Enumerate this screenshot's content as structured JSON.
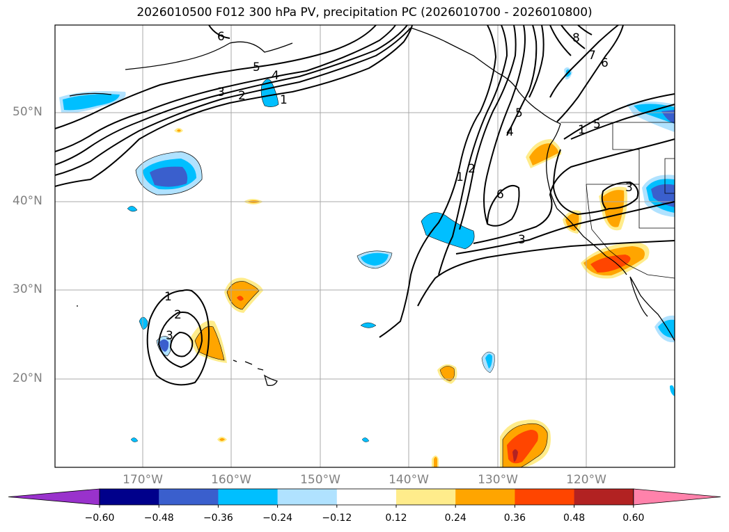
{
  "title": "2026010500 F012 300 hPa PV, precipitation PC (2026010700 - 2026010800)",
  "lat_labels": [
    "50°N",
    "40°N",
    "30°N",
    "20°N"
  ],
  "lon_labels": [
    "170°W",
    "160°W",
    "150°W",
    "140°W",
    "130°W",
    "120°W"
  ],
  "contour_labels": [
    "1",
    "2",
    "3",
    "4",
    "5",
    "6",
    "7",
    "8"
  ],
  "colorbar": {
    "levels": [
      "−0.60",
      "−0.48",
      "−0.36",
      "−0.24",
      "−0.12",
      "0.12",
      "0.24",
      "0.36",
      "0.48",
      "0.60"
    ],
    "colors": [
      "#9932cc",
      "#00008b",
      "#3a5fcd",
      "#00bfff",
      "#b0e2ff",
      "#ffffff",
      "#ffec8b",
      "#ffa500",
      "#ff4500",
      "#b22222",
      "#ff82ab"
    ]
  },
  "fill_colors": {
    "neg1": "#b0e2ff",
    "neg2": "#00bfff",
    "neg3": "#3a5fcd",
    "pos1": "#ffec8b",
    "pos2": "#ffa500",
    "pos3": "#ff4500",
    "pos4": "#b22222"
  }
}
